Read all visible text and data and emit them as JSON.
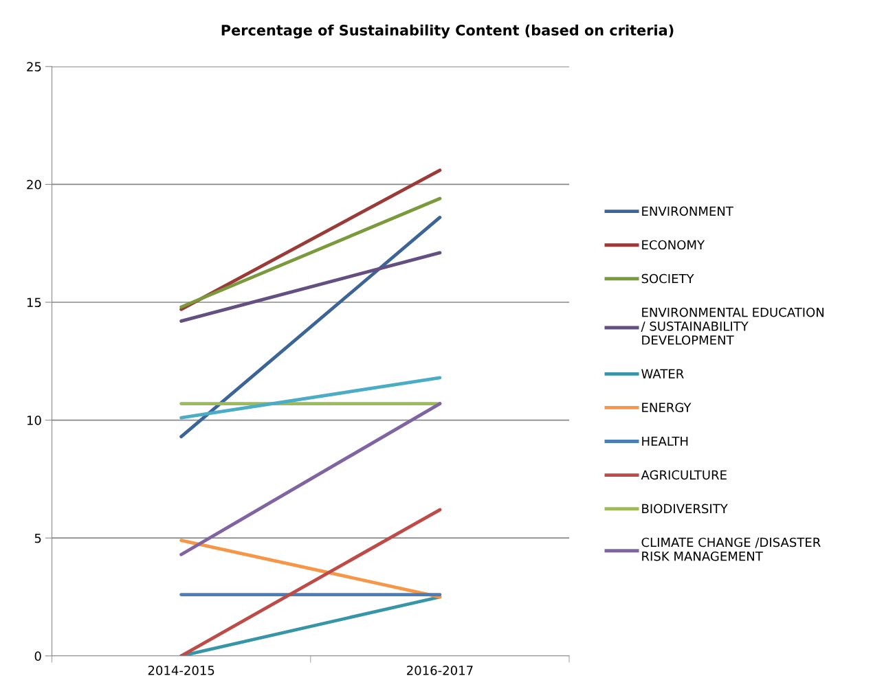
{
  "chart_data": {
    "type": "line",
    "title": "Percentage of Sustainability Content (based on criteria)",
    "categories": [
      "2014-2015",
      "2016-2017"
    ],
    "ylim": [
      0,
      25
    ],
    "yticks": [
      0,
      5,
      10,
      15,
      20,
      25
    ],
    "grid": "y",
    "legend": "right",
    "marker": "none",
    "line_style": "solid",
    "series": [
      {
        "name": "ENVIRONMENT",
        "color": "#3c6496",
        "values": [
          9.3,
          18.6
        ]
      },
      {
        "name": "ECONOMY",
        "color": "#9a3b38",
        "values": [
          14.7,
          20.6
        ]
      },
      {
        "name": "SOCIETY",
        "color": "#7a9a3c",
        "values": [
          14.8,
          19.4
        ]
      },
      {
        "name": "ENVIRONMENTAL EDUCATION\n/ SUSTAINABILITY\nDEVELOPMENT",
        "color": "#634f82",
        "values": [
          14.2,
          17.1
        ]
      },
      {
        "name": "WATER",
        "color": "#3795a8",
        "values": [
          0,
          2.5
        ]
      },
      {
        "name": "ENERGY",
        "color": "#f79646",
        "values": [
          4.9,
          2.5
        ]
      },
      {
        "name": "HEALTH",
        "color": "#4a7ebb",
        "values": [
          2.6,
          2.6
        ]
      },
      {
        "name": "AGRICULTURE",
        "color": "#be4b48",
        "values": [
          0,
          6.2
        ]
      },
      {
        "name": "BIODIVERSITY",
        "color": "#9bbb59",
        "values": [
          10.7,
          10.7
        ]
      },
      {
        "name": "CLIMATE CHANGE /DISASTER\nRISK MANAGEMENT",
        "color": "#8064a2",
        "values": [
          4.3,
          10.7
        ]
      },
      {
        "color": "#4bacc6",
        "values": [
          10.1,
          11.8
        ]
      }
    ]
  }
}
